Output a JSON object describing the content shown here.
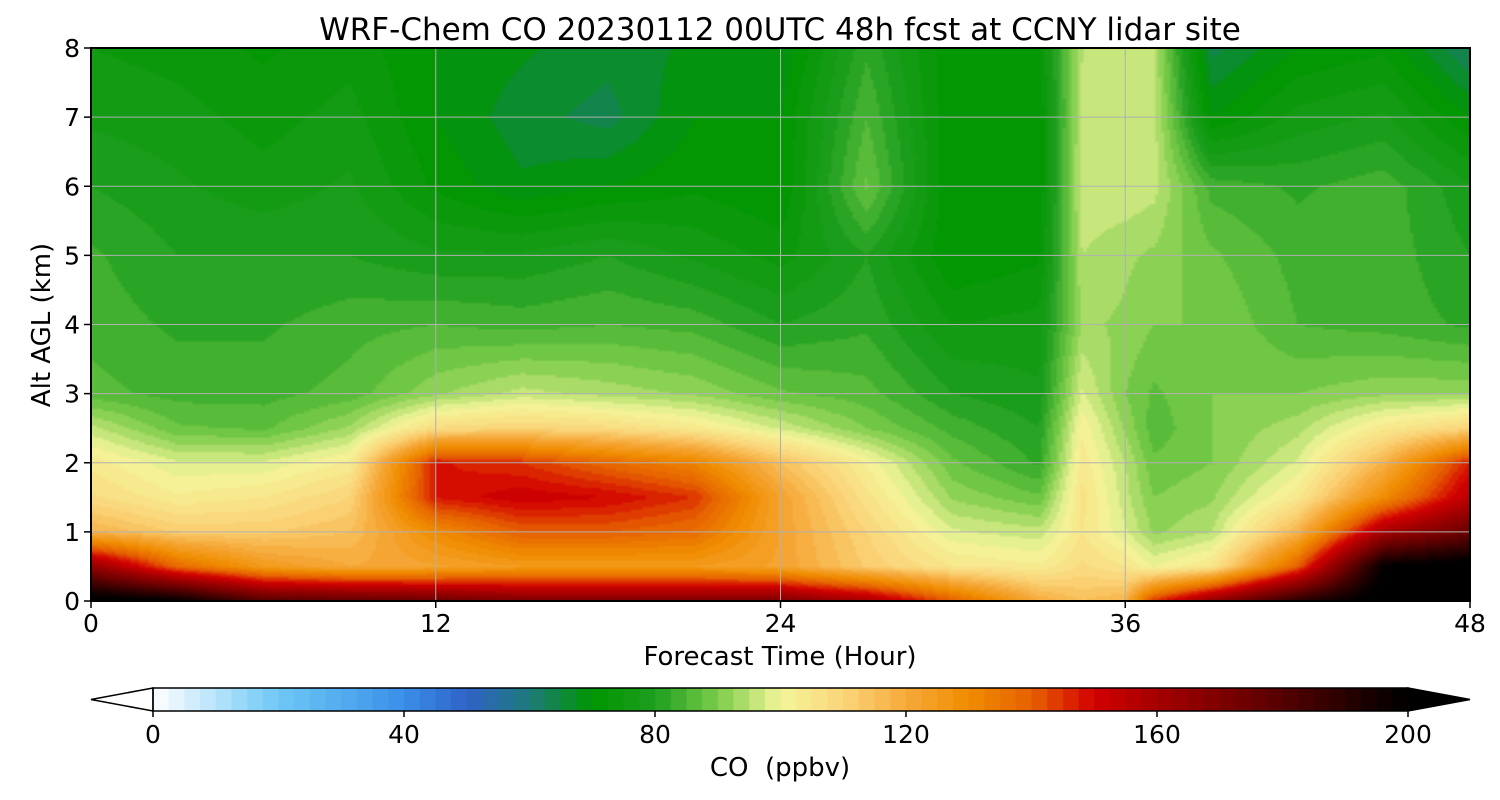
{
  "chart_data": {
    "type": "heatmap",
    "title": "WRF-Chem CO  20230112 00UTC 48h fcst at CCNY lidar site",
    "xlabel": "Forecast Time (Hour)",
    "ylabel": "Alt AGL (km)",
    "xlim": [
      0,
      48
    ],
    "ylim": [
      0,
      8
    ],
    "xticks": [
      0,
      12,
      24,
      36,
      48
    ],
    "yticks": [
      0,
      1,
      2,
      3,
      4,
      5,
      6,
      7,
      8
    ],
    "grid": true,
    "colorbar": {
      "label": "CO  (ppbv)",
      "min": 0,
      "max": 200,
      "ticks": [
        0,
        40,
        80,
        120,
        160,
        200
      ],
      "extend": "both",
      "stops": [
        {
          "value": 0,
          "color": "#ffffff"
        },
        {
          "value": 20,
          "color": "#6ec8f5"
        },
        {
          "value": 40,
          "color": "#3a8fe8"
        },
        {
          "value": 50,
          "color": "#2f62c8"
        },
        {
          "value": 60,
          "color": "#1e7a7a"
        },
        {
          "value": 70,
          "color": "#009600"
        },
        {
          "value": 80,
          "color": "#1e9e1e"
        },
        {
          "value": 90,
          "color": "#7ccc4a"
        },
        {
          "value": 100,
          "color": "#f4f59a"
        },
        {
          "value": 110,
          "color": "#fbd57a"
        },
        {
          "value": 120,
          "color": "#f6a93a"
        },
        {
          "value": 130,
          "color": "#f08c00"
        },
        {
          "value": 140,
          "color": "#e66100"
        },
        {
          "value": 150,
          "color": "#d20000"
        },
        {
          "value": 160,
          "color": "#a50000"
        },
        {
          "value": 175,
          "color": "#6a0000"
        },
        {
          "value": 190,
          "color": "#280000"
        },
        {
          "value": 200,
          "color": "#000000"
        }
      ]
    },
    "x": [
      0,
      3,
      6,
      9,
      12,
      15,
      18,
      21,
      24,
      27,
      30,
      33,
      34.5,
      36,
      37,
      39,
      42,
      45,
      48
    ],
    "y": [
      0,
      0.5,
      1,
      1.5,
      2,
      2.5,
      3,
      4,
      5,
      6,
      7,
      8
    ],
    "z": [
      [
        205,
        200,
        180,
        178,
        175,
        170,
        170,
        170,
        170,
        160,
        140,
        120,
        115,
        118,
        145,
        165,
        190,
        205,
        205
      ],
      [
        165,
        138,
        125,
        120,
        122,
        125,
        125,
        125,
        122,
        112,
        105,
        103,
        108,
        105,
        100,
        105,
        140,
        200,
        205
      ],
      [
        118,
        112,
        112,
        115,
        130,
        140,
        140,
        137,
        122,
        110,
        98,
        96,
        105,
        98,
        92,
        95,
        118,
        160,
        175
      ],
      [
        108,
        103,
        105,
        110,
        148,
        152,
        150,
        145,
        122,
        106,
        92,
        88,
        106,
        96,
        90,
        92,
        104,
        130,
        155
      ],
      [
        104,
        98,
        98,
        103,
        148,
        145,
        138,
        132,
        115,
        102,
        88,
        82,
        104,
        95,
        88,
        90,
        98,
        118,
        148
      ],
      [
        96,
        88,
        87,
        93,
        108,
        110,
        108,
        104,
        97,
        90,
        84,
        80,
        102,
        92,
        86,
        90,
        94,
        104,
        110
      ],
      [
        86,
        84,
        84,
        86,
        92,
        96,
        94,
        92,
        88,
        86,
        80,
        78,
        98,
        90,
        87,
        90,
        90,
        92,
        92
      ],
      [
        84,
        82,
        82,
        84,
        85,
        84,
        85,
        84,
        80,
        82,
        75,
        76,
        93,
        92,
        90,
        90,
        85,
        84,
        82
      ],
      [
        83,
        80,
        80,
        80,
        78,
        78,
        80,
        77,
        74,
        80,
        70,
        72,
        95,
        93,
        92,
        88,
        84,
        84,
        80
      ],
      [
        80,
        78,
        76,
        78,
        72,
        68,
        70,
        72,
        70,
        88,
        70,
        70,
        97,
        97,
        96,
        84,
        82,
        84,
        78
      ],
      [
        77,
        76,
        74,
        76,
        70,
        66,
        64,
        70,
        70,
        85,
        70,
        70,
        96,
        97,
        96,
        70,
        76,
        78,
        70
      ],
      [
        75,
        74,
        72,
        74,
        70,
        68,
        66,
        68,
        68,
        82,
        70,
        72,
        95,
        97,
        95,
        64,
        70,
        72,
        62
      ]
    ]
  }
}
